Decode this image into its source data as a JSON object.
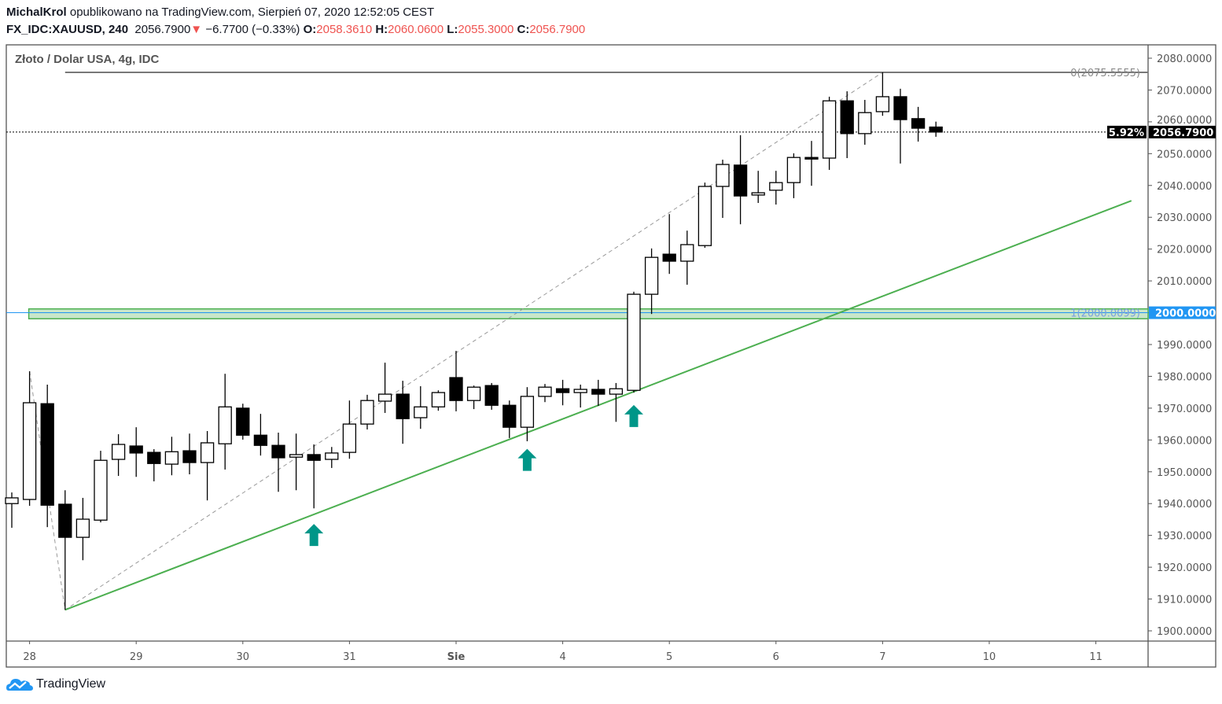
{
  "header": {
    "author": "MichalKrol",
    "published_text": "opublikowano na TradingView.com, Sierpień 07, 2020 12:52:05 CEST",
    "symbol": "FX_IDC:XAUUSD, 240",
    "last_price": "2056.7900",
    "direction_icon": "triangle-down-icon",
    "change": "−6.7700 (−0.33%)",
    "o_label": "O:",
    "o_value": "2058.3610",
    "h_label": "H:",
    "h_value": "2060.0600",
    "l_label": "L:",
    "l_value": "2055.3000",
    "c_label": "C:",
    "c_value": "2056.7900"
  },
  "chart_title": "Złoto / Dolar USA, 4g, IDC",
  "footer": {
    "brand": "TradingView",
    "logo_icon": "tradingview-cloud-logo"
  },
  "colors": {
    "up_body": "#ffffff",
    "down_body": "#000000",
    "trendline": "#4caf50",
    "zone": "#4caf50",
    "level_line": "#2196f3",
    "arrow": "#009688",
    "change_red": "#ef5350"
  },
  "chart_data": {
    "type": "candlestick",
    "timeframe": "240",
    "ylim": [
      1897,
      2083
    ],
    "y_ticks": [
      "2080.0000",
      "2070.0000",
      "2060.0000",
      "2050.0000",
      "2040.0000",
      "2030.0000",
      "2020.0000",
      "2010.0000",
      "2000.0000",
      "1990.0000",
      "1980.0000",
      "1970.0000",
      "1960.0000",
      "1950.0000",
      "1940.0000",
      "1930.0000",
      "1920.0000",
      "1910.0000",
      "1900.0000"
    ],
    "x_ticks": [
      {
        "label": "28",
        "bar": 1
      },
      {
        "label": "29",
        "bar": 7
      },
      {
        "label": "30",
        "bar": 13
      },
      {
        "label": "31",
        "bar": 19
      },
      {
        "label": "Sie",
        "bar": 25,
        "bold": true
      },
      {
        "label": "4",
        "bar": 31
      },
      {
        "label": "5",
        "bar": 37
      },
      {
        "label": "6",
        "bar": 43
      },
      {
        "label": "7",
        "bar": 49
      },
      {
        "label": "10",
        "bar": 55
      },
      {
        "label": "11",
        "bar": 61
      }
    ],
    "candles_ohlc": [
      [
        1940.0,
        1943.5,
        1932.4,
        1941.8
      ],
      [
        1941.3,
        1981.6,
        1939.3,
        1971.7
      ],
      [
        1971.4,
        1977.4,
        1932.6,
        1939.5
      ],
      [
        1939.8,
        1944.2,
        1906.6,
        1929.4
      ],
      [
        1929.4,
        1941.8,
        1922.2,
        1935.1
      ],
      [
        1934.8,
        1956.6,
        1934.1,
        1953.6
      ],
      [
        1953.9,
        1961.8,
        1948.7,
        1958.6
      ],
      [
        1958.1,
        1964.0,
        1948.4,
        1955.9
      ],
      [
        1956.1,
        1957.1,
        1947.0,
        1952.6
      ],
      [
        1952.4,
        1961.0,
        1948.9,
        1956.3
      ],
      [
        1956.6,
        1962.0,
        1949.2,
        1952.9
      ],
      [
        1952.9,
        1962.8,
        1941.0,
        1959.1
      ],
      [
        1958.8,
        1980.8,
        1950.7,
        1970.4
      ],
      [
        1970.0,
        1971.4,
        1960.1,
        1961.5
      ],
      [
        1961.5,
        1968.2,
        1955.1,
        1958.3
      ],
      [
        1958.3,
        1962.3,
        1943.7,
        1954.4
      ],
      [
        1954.6,
        1962.0,
        1944.2,
        1955.4
      ],
      [
        1955.4,
        1958.6,
        1938.5,
        1953.6
      ],
      [
        1953.9,
        1957.8,
        1951.2,
        1955.9
      ],
      [
        1956.1,
        1972.4,
        1954.1,
        1965.0
      ],
      [
        1965.0,
        1974.2,
        1963.3,
        1972.4
      ],
      [
        1972.2,
        1984.3,
        1968.5,
        1974.4
      ],
      [
        1974.4,
        1978.6,
        1958.8,
        1966.7
      ],
      [
        1967.0,
        1976.9,
        1963.5,
        1970.4
      ],
      [
        1970.4,
        1975.6,
        1969.2,
        1974.9
      ],
      [
        1979.6,
        1988.0,
        1969.0,
        1972.4
      ],
      [
        1972.4,
        1977.1,
        1969.7,
        1976.6
      ],
      [
        1977.1,
        1977.9,
        1969.5,
        1970.9
      ],
      [
        1970.9,
        1972.4,
        1960.6,
        1964.0
      ],
      [
        1964.0,
        1976.6,
        1959.6,
        1973.7
      ],
      [
        1973.7,
        1977.6,
        1971.9,
        1976.6
      ],
      [
        1976.1,
        1978.9,
        1970.9,
        1974.9
      ],
      [
        1974.9,
        1977.4,
        1970.2,
        1975.9
      ],
      [
        1975.9,
        1978.9,
        1970.7,
        1974.4
      ],
      [
        1974.4,
        1977.9,
        1965.7,
        1976.1
      ],
      [
        1975.6,
        2006.6,
        1974.9,
        2005.8
      ],
      [
        2005.8,
        2020.2,
        1999.6,
        2017.4
      ],
      [
        2018.4,
        2031.0,
        2012.2,
        2016.2
      ],
      [
        2016.2,
        2025.8,
        2008.8,
        2021.4
      ],
      [
        2021.1,
        2040.9,
        2020.4,
        2039.7
      ],
      [
        2039.7,
        2048.1,
        2029.8,
        2046.6
      ],
      [
        2046.4,
        2055.8,
        2027.8,
        2036.7
      ],
      [
        2037.0,
        2044.6,
        2034.5,
        2037.7
      ],
      [
        2038.5,
        2044.6,
        2034.0,
        2040.9
      ],
      [
        2040.9,
        2050.1,
        2036.0,
        2048.8
      ],
      [
        2048.8,
        2054.0,
        2039.9,
        2048.3
      ],
      [
        2048.6,
        2067.9,
        2044.9,
        2066.6
      ],
      [
        2066.6,
        2069.6,
        2048.6,
        2056.3
      ],
      [
        2056.3,
        2066.9,
        2052.8,
        2062.9
      ],
      [
        2063.2,
        2075.56,
        2061.9,
        2067.9
      ],
      [
        2067.9,
        2070.4,
        2046.9,
        2060.7
      ],
      [
        2061.0,
        2064.7,
        2053.8,
        2058.0
      ],
      [
        2058.361,
        2060.06,
        2055.3,
        2056.79
      ]
    ],
    "last_price_label": "2056.7900",
    "last_price": 2056.79,
    "percent_label": "5.92%",
    "horizontal_level": {
      "price": 2000.0,
      "label": "2000.0000"
    },
    "zone": {
      "top": 2001.2,
      "bottom": 1998.1,
      "from_bar": 1
    },
    "fib": {
      "points": [
        [
          1,
          1981.6
        ],
        [
          3,
          1906.6
        ],
        [
          49,
          2075.56
        ]
      ],
      "levels": [
        {
          "price": 2075.5555,
          "label": "0(2075.5555)"
        },
        {
          "price": 2000.0099,
          "label": "1(2000.0099)"
        }
      ]
    },
    "trendline": {
      "from": [
        3,
        1906.6
      ],
      "to": [
        63,
        2035.2
      ]
    },
    "arrows_up_at_bars": [
      {
        "bar": 17,
        "price": 1933.6
      },
      {
        "bar": 29,
        "price": 1957.2
      },
      {
        "bar": 35,
        "price": 1971.0
      }
    ]
  }
}
